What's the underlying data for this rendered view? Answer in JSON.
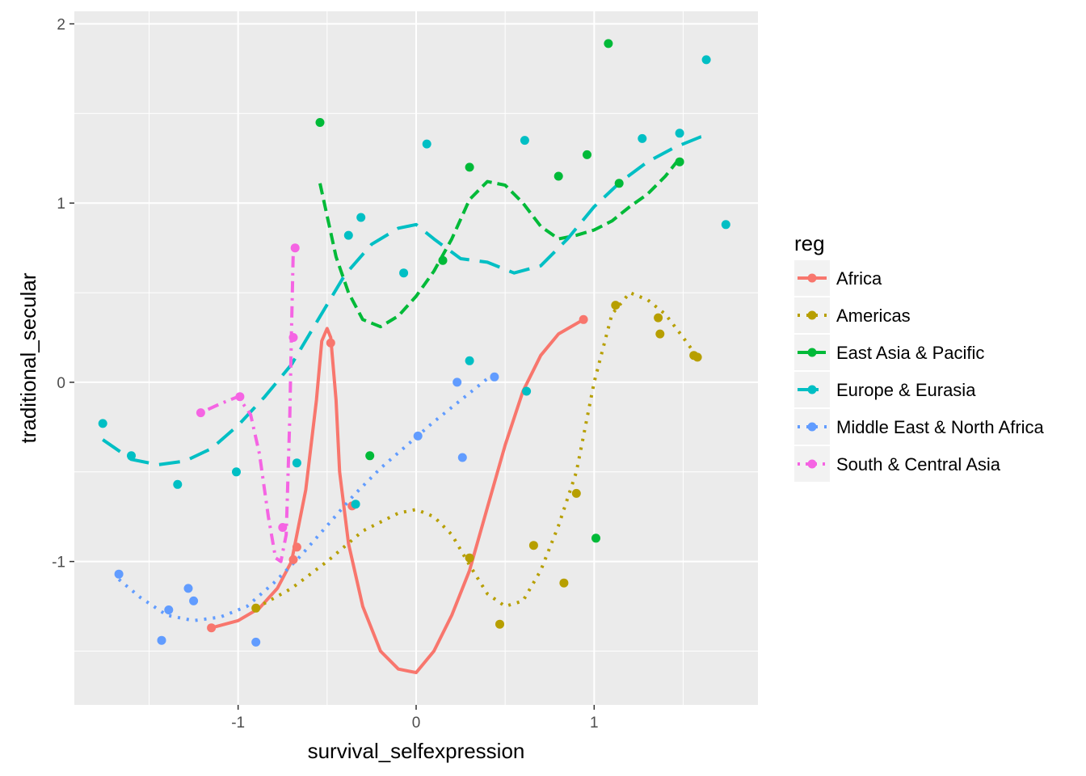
{
  "chart_data": {
    "type": "scatter",
    "xlabel": "survival_selfexpression",
    "ylabel": "traditional_secular",
    "xlim": [
      -1.92,
      1.92
    ],
    "ylim": [
      -1.8,
      2.07
    ],
    "x_ticks": [
      -1,
      0,
      1
    ],
    "x_tick_labels": [
      "-1",
      "0",
      "1"
    ],
    "y_ticks": [
      -1,
      0,
      1,
      2
    ],
    "y_tick_labels": [
      "-1",
      "0",
      "1",
      "2"
    ],
    "grid": true,
    "panel_background": "#ebebeb",
    "legend_title": "reg",
    "legend_position": "right",
    "series": [
      {
        "name": "Africa",
        "color": "#F8766D",
        "linetype": "solid",
        "points": [
          [
            -1.15,
            -1.37
          ],
          [
            -0.69,
            -0.99
          ],
          [
            -0.67,
            -0.92
          ],
          [
            -0.48,
            0.22
          ],
          [
            -0.36,
            -0.69
          ],
          [
            0.94,
            0.35
          ]
        ],
        "curve": [
          [
            -1.15,
            -1.37
          ],
          [
            -1.0,
            -1.33
          ],
          [
            -0.88,
            -1.26
          ],
          [
            -0.78,
            -1.15
          ],
          [
            -0.7,
            -1.0
          ],
          [
            -0.62,
            -0.6
          ],
          [
            -0.56,
            -0.1
          ],
          [
            -0.53,
            0.23
          ],
          [
            -0.5,
            0.3
          ],
          [
            -0.48,
            0.25
          ],
          [
            -0.45,
            -0.1
          ],
          [
            -0.43,
            -0.5
          ],
          [
            -0.38,
            -0.9
          ],
          [
            -0.3,
            -1.25
          ],
          [
            -0.2,
            -1.5
          ],
          [
            -0.1,
            -1.6
          ],
          [
            0.0,
            -1.62
          ],
          [
            0.1,
            -1.5
          ],
          [
            0.2,
            -1.3
          ],
          [
            0.3,
            -1.05
          ],
          [
            0.4,
            -0.7
          ],
          [
            0.5,
            -0.35
          ],
          [
            0.6,
            -0.05
          ],
          [
            0.7,
            0.15
          ],
          [
            0.8,
            0.27
          ],
          [
            0.94,
            0.35
          ]
        ]
      },
      {
        "name": "Americas",
        "color": "#B79F00",
        "linetype": "dotted",
        "points": [
          [
            -0.9,
            -1.26
          ],
          [
            0.3,
            -0.98
          ],
          [
            0.47,
            -1.35
          ],
          [
            0.66,
            -0.91
          ],
          [
            0.83,
            -1.12
          ],
          [
            0.9,
            -0.62
          ],
          [
            1.12,
            0.43
          ],
          [
            1.36,
            0.36
          ],
          [
            1.37,
            0.27
          ],
          [
            1.56,
            0.15
          ],
          [
            1.58,
            0.14
          ]
        ],
        "curve": [
          [
            -0.9,
            -1.26
          ],
          [
            -0.7,
            -1.15
          ],
          [
            -0.5,
            -1.0
          ],
          [
            -0.3,
            -0.83
          ],
          [
            -0.1,
            -0.73
          ],
          [
            0.0,
            -0.71
          ],
          [
            0.1,
            -0.75
          ],
          [
            0.2,
            -0.85
          ],
          [
            0.3,
            -1.02
          ],
          [
            0.4,
            -1.18
          ],
          [
            0.5,
            -1.25
          ],
          [
            0.6,
            -1.22
          ],
          [
            0.7,
            -1.05
          ],
          [
            0.8,
            -0.8
          ],
          [
            0.9,
            -0.5
          ],
          [
            1.0,
            0.0
          ],
          [
            1.1,
            0.38
          ],
          [
            1.2,
            0.5
          ],
          [
            1.3,
            0.46
          ],
          [
            1.4,
            0.38
          ],
          [
            1.5,
            0.25
          ],
          [
            1.58,
            0.14
          ]
        ]
      },
      {
        "name": "East Asia & Pacific",
        "color": "#00BA38",
        "linetype": "dashed",
        "points": [
          [
            -0.54,
            1.45
          ],
          [
            -0.26,
            -0.41
          ],
          [
            0.15,
            0.68
          ],
          [
            0.3,
            1.2
          ],
          [
            0.8,
            1.15
          ],
          [
            0.96,
            1.27
          ],
          [
            1.01,
            -0.87
          ],
          [
            1.08,
            1.89
          ],
          [
            1.14,
            1.11
          ],
          [
            1.48,
            1.23
          ]
        ],
        "curve": [
          [
            -0.54,
            1.11
          ],
          [
            -0.45,
            0.7
          ],
          [
            -0.38,
            0.5
          ],
          [
            -0.3,
            0.35
          ],
          [
            -0.2,
            0.31
          ],
          [
            -0.1,
            0.37
          ],
          [
            0.0,
            0.48
          ],
          [
            0.1,
            0.62
          ],
          [
            0.2,
            0.8
          ],
          [
            0.3,
            1.02
          ],
          [
            0.4,
            1.12
          ],
          [
            0.5,
            1.1
          ],
          [
            0.6,
            1.0
          ],
          [
            0.7,
            0.87
          ],
          [
            0.8,
            0.8
          ],
          [
            0.9,
            0.82
          ],
          [
            1.0,
            0.85
          ],
          [
            1.1,
            0.9
          ],
          [
            1.2,
            0.98
          ],
          [
            1.3,
            1.05
          ],
          [
            1.4,
            1.15
          ],
          [
            1.48,
            1.25
          ]
        ]
      },
      {
        "name": "Europe & Eurasia",
        "color": "#00BFC4",
        "linetype": "longdash",
        "points": [
          [
            -1.76,
            -0.23
          ],
          [
            -1.6,
            -0.41
          ],
          [
            -1.34,
            -0.57
          ],
          [
            -1.01,
            -0.5
          ],
          [
            -0.67,
            -0.45
          ],
          [
            -0.38,
            0.82
          ],
          [
            -0.31,
            0.92
          ],
          [
            -0.34,
            -0.68
          ],
          [
            -0.07,
            0.61
          ],
          [
            0.06,
            1.33
          ],
          [
            0.3,
            0.12
          ],
          [
            0.61,
            1.35
          ],
          [
            0.62,
            -0.05
          ],
          [
            1.27,
            1.36
          ],
          [
            1.48,
            1.39
          ],
          [
            1.63,
            1.8
          ],
          [
            1.74,
            0.88
          ]
        ],
        "curve": [
          [
            -1.76,
            -0.32
          ],
          [
            -1.6,
            -0.43
          ],
          [
            -1.45,
            -0.46
          ],
          [
            -1.3,
            -0.44
          ],
          [
            -1.15,
            -0.37
          ],
          [
            -1.0,
            -0.24
          ],
          [
            -0.85,
            -0.08
          ],
          [
            -0.7,
            0.1
          ],
          [
            -0.55,
            0.35
          ],
          [
            -0.4,
            0.6
          ],
          [
            -0.25,
            0.77
          ],
          [
            -0.1,
            0.86
          ],
          [
            0.0,
            0.88
          ],
          [
            0.1,
            0.8
          ],
          [
            0.25,
            0.69
          ],
          [
            0.4,
            0.67
          ],
          [
            0.55,
            0.61
          ],
          [
            0.7,
            0.65
          ],
          [
            0.85,
            0.8
          ],
          [
            1.0,
            0.98
          ],
          [
            1.15,
            1.12
          ],
          [
            1.3,
            1.23
          ],
          [
            1.45,
            1.31
          ],
          [
            1.6,
            1.37
          ],
          [
            1.65,
            1.38
          ]
        ]
      },
      {
        "name": "Middle East & North Africa",
        "color": "#619CFF",
        "linetype": "dotted",
        "points": [
          [
            -1.67,
            -1.07
          ],
          [
            -1.43,
            -1.44
          ],
          [
            -1.39,
            -1.27
          ],
          [
            -1.28,
            -1.15
          ],
          [
            -1.25,
            -1.22
          ],
          [
            -0.9,
            -1.45
          ],
          [
            0.01,
            -0.3
          ],
          [
            0.23,
            0.0
          ],
          [
            0.26,
            -0.42
          ],
          [
            0.44,
            0.03
          ]
        ],
        "curve": [
          [
            -1.67,
            -1.1
          ],
          [
            -1.55,
            -1.2
          ],
          [
            -1.4,
            -1.3
          ],
          [
            -1.25,
            -1.33
          ],
          [
            -1.1,
            -1.31
          ],
          [
            -0.95,
            -1.25
          ],
          [
            -0.8,
            -1.12
          ],
          [
            -0.65,
            -0.97
          ],
          [
            -0.5,
            -0.8
          ],
          [
            -0.35,
            -0.63
          ],
          [
            -0.2,
            -0.48
          ],
          [
            -0.05,
            -0.35
          ],
          [
            0.1,
            -0.22
          ],
          [
            0.25,
            -0.1
          ],
          [
            0.4,
            0.02
          ]
        ]
      },
      {
        "name": "South & Central Asia",
        "color": "#F564E3",
        "linetype": "dotdash",
        "points": [
          [
            -1.21,
            -0.17
          ],
          [
            -0.99,
            -0.08
          ],
          [
            -0.75,
            -0.81
          ],
          [
            -0.69,
            0.25
          ],
          [
            -0.68,
            0.75
          ]
        ],
        "curve": [
          [
            -1.21,
            -0.17
          ],
          [
            -1.1,
            -0.12
          ],
          [
            -1.0,
            -0.08
          ],
          [
            -0.93,
            -0.18
          ],
          [
            -0.88,
            -0.4
          ],
          [
            -0.83,
            -0.75
          ],
          [
            -0.79,
            -0.98
          ],
          [
            -0.76,
            -1.0
          ],
          [
            -0.73,
            -0.85
          ],
          [
            -0.71,
            -0.2
          ],
          [
            -0.7,
            0.3
          ],
          [
            -0.69,
            0.75
          ]
        ]
      }
    ]
  }
}
